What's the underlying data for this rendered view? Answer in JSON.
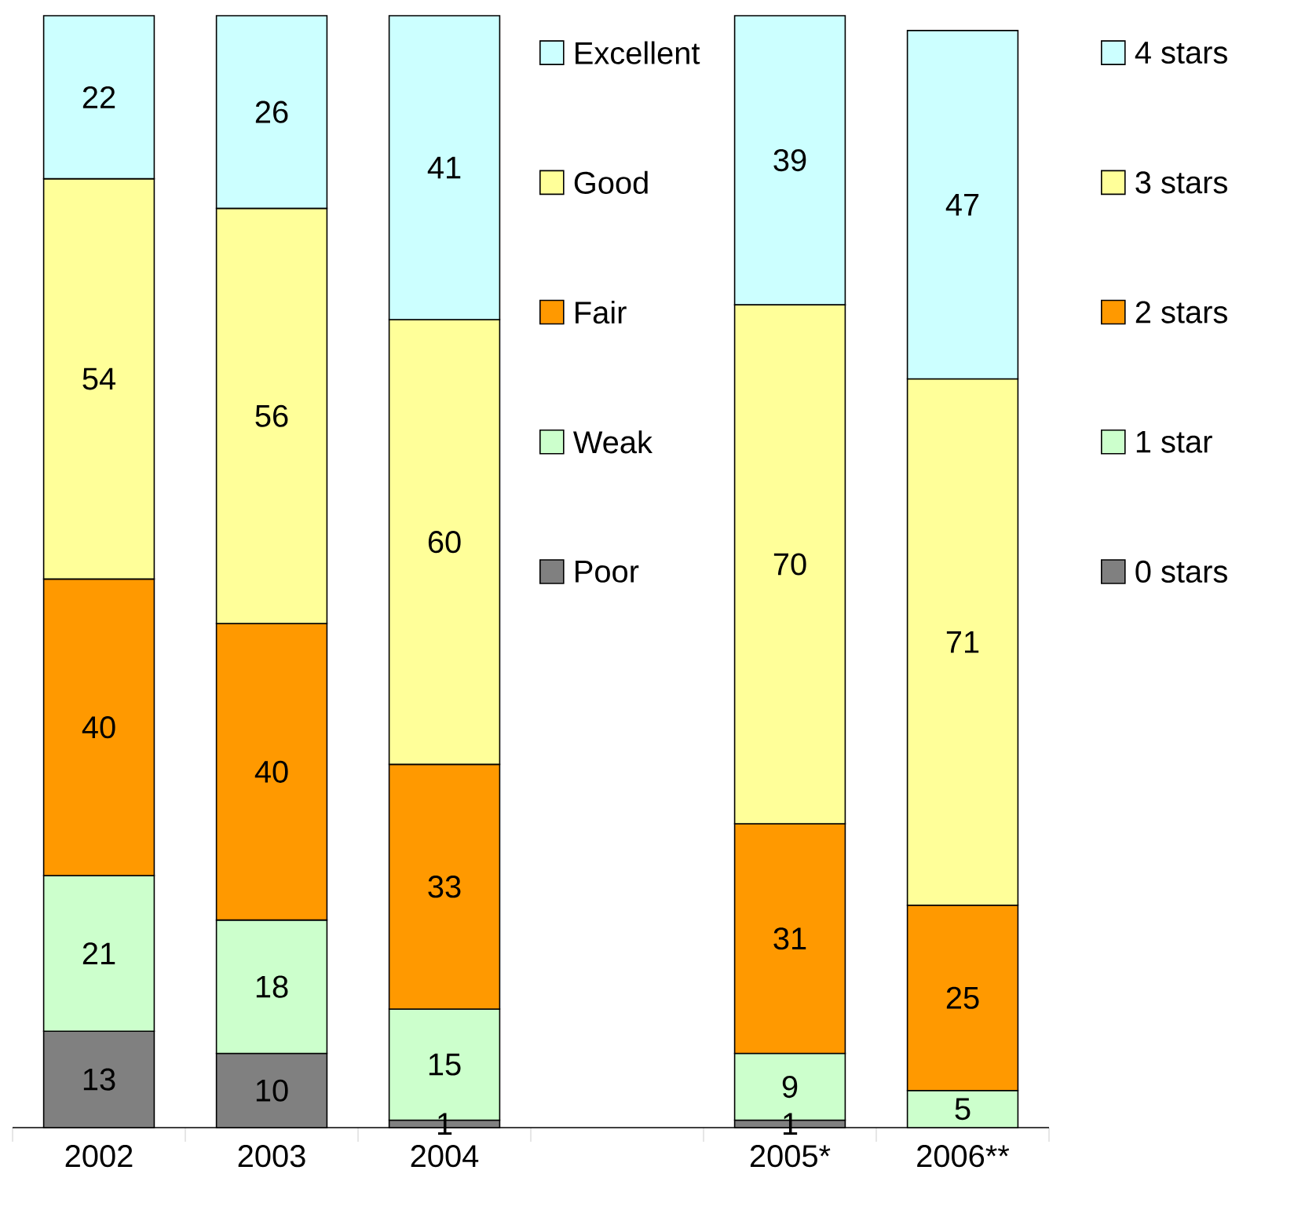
{
  "chart_data": {
    "type": "bar",
    "stacked": true,
    "data_labels": true,
    "legend": "right",
    "tick_labels": "x",
    "ylim": [
      0,
      150
    ],
    "categories": [
      "2002",
      "2003",
      "2004",
      null,
      "2005*",
      "2006**"
    ],
    "series": [
      {
        "name": "Poor",
        "color": "#808080",
        "values": [
          13,
          10,
          1,
          null,
          null,
          null
        ]
      },
      {
        "name": "Weak",
        "color": "#ccffcc",
        "values": [
          21,
          18,
          15,
          null,
          null,
          null
        ]
      },
      {
        "name": "Fair",
        "color": "#ff9900",
        "values": [
          40,
          40,
          33,
          null,
          null,
          null
        ]
      },
      {
        "name": "Good",
        "color": "#ffff99",
        "values": [
          54,
          56,
          60,
          null,
          null,
          null
        ]
      },
      {
        "name": "Excellent",
        "color": "#ccffff",
        "values": [
          22,
          26,
          41,
          null,
          null,
          null
        ]
      },
      {
        "name": "0 stars",
        "color": "#808080",
        "values": [
          null,
          null,
          null,
          null,
          1,
          null
        ]
      },
      {
        "name": "1 star",
        "color": "#ccffcc",
        "values": [
          null,
          null,
          null,
          null,
          9,
          5
        ]
      },
      {
        "name": "2 stars",
        "color": "#ff9900",
        "values": [
          null,
          null,
          null,
          null,
          31,
          25
        ]
      },
      {
        "name": "3 stars",
        "color": "#ffff99",
        "values": [
          null,
          null,
          null,
          null,
          70,
          71
        ]
      },
      {
        "name": "4 stars",
        "color": "#ccffff",
        "values": [
          null,
          null,
          null,
          null,
          39,
          47
        ]
      }
    ]
  }
}
